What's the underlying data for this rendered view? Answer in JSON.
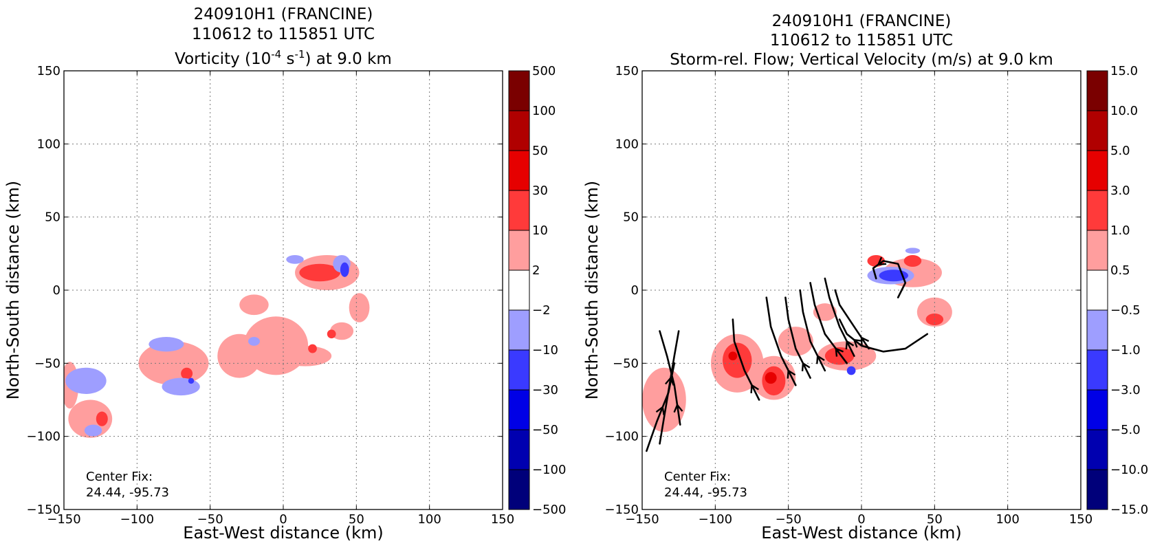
{
  "chart_data": [
    {
      "type": "heatmap",
      "title_lines": [
        "240910H1 (FRANCINE)",
        "110612 to 115851 UTC"
      ],
      "title_var": {
        "pre": "Vorticity (10",
        "exp1": "-4",
        "mid": " s",
        "exp2": "-1",
        "post": ") at 9.0 km"
      },
      "xlabel": "East-West distance (km)",
      "ylabel": "North-South distance (km)",
      "xlim": [
        -150,
        150
      ],
      "ylim": [
        -150,
        150
      ],
      "xticks": [
        "−150",
        "−100",
        "−50",
        "0",
        "50",
        "100",
        "150"
      ],
      "xtick_values": [
        -150,
        -100,
        -50,
        0,
        50,
        100,
        150
      ],
      "yticks": [
        "150",
        "100",
        "50",
        "0",
        "−50",
        "−100",
        "−150"
      ],
      "ytick_values": [
        150,
        100,
        50,
        0,
        -50,
        -100,
        -150
      ],
      "grid": true,
      "colorbar": {
        "labels": [
          "500",
          "100",
          "50",
          "30",
          "10",
          "2",
          "−2",
          "−10",
          "−30",
          "−50",
          "−100",
          "−500"
        ],
        "colors": [
          "#7a0000",
          "#b00000",
          "#e60000",
          "#ff3a3a",
          "#ff9e9e",
          "#ffffff",
          "#9e9eff",
          "#3a3aff",
          "#0000e6",
          "#0000b0",
          "#00007a"
        ]
      },
      "annotation": [
        "Center Fix:",
        "24.44, -95.73"
      ],
      "features": [
        {
          "level": "pos_2",
          "cx": -5,
          "cy": -38,
          "rx": 22,
          "ry": 20
        },
        {
          "level": "pos_2",
          "cx": -30,
          "cy": -45,
          "rx": 15,
          "ry": 15
        },
        {
          "level": "pos_2",
          "cx": 15,
          "cy": -45,
          "rx": 18,
          "ry": 7
        },
        {
          "level": "pos_2",
          "cx": -75,
          "cy": -50,
          "rx": 24,
          "ry": 15
        },
        {
          "level": "pos_2",
          "cx": -132,
          "cy": -88,
          "rx": 15,
          "ry": 13
        },
        {
          "level": "pos_2",
          "cx": -146,
          "cy": -65,
          "rx": 6,
          "ry": 16
        },
        {
          "level": "pos_2",
          "cx": 30,
          "cy": 12,
          "rx": 22,
          "ry": 12
        },
        {
          "level": "pos_2",
          "cx": 52,
          "cy": -12,
          "rx": 7,
          "ry": 10
        },
        {
          "level": "pos_2",
          "cx": 40,
          "cy": -28,
          "rx": 8,
          "ry": 6
        },
        {
          "level": "pos_2",
          "cx": -20,
          "cy": -10,
          "rx": 10,
          "ry": 7
        },
        {
          "level": "pos_10",
          "cx": 25,
          "cy": 12,
          "rx": 14,
          "ry": 6
        },
        {
          "level": "pos_10",
          "cx": -124,
          "cy": -88,
          "rx": 4,
          "ry": 5
        },
        {
          "level": "pos_10",
          "cx": -66,
          "cy": -57,
          "rx": 4,
          "ry": 4
        },
        {
          "level": "pos_10",
          "cx": 33,
          "cy": -30,
          "rx": 3,
          "ry": 3
        },
        {
          "level": "pos_10",
          "cx": 20,
          "cy": -40,
          "rx": 3,
          "ry": 3
        },
        {
          "level": "neg_2",
          "cx": -135,
          "cy": -62,
          "rx": 14,
          "ry": 9
        },
        {
          "level": "neg_2",
          "cx": -80,
          "cy": -37,
          "rx": 12,
          "ry": 5
        },
        {
          "level": "neg_2",
          "cx": -70,
          "cy": -66,
          "rx": 13,
          "ry": 6
        },
        {
          "level": "neg_2",
          "cx": -130,
          "cy": -96,
          "rx": 6,
          "ry": 4
        },
        {
          "level": "neg_2",
          "cx": 40,
          "cy": 18,
          "rx": 6,
          "ry": 6
        },
        {
          "level": "neg_2",
          "cx": 8,
          "cy": 21,
          "rx": 6,
          "ry": 3
        },
        {
          "level": "neg_2",
          "cx": -20,
          "cy": -35,
          "rx": 4,
          "ry": 3
        },
        {
          "level": "neg_10",
          "cx": 42,
          "cy": 14,
          "rx": 3,
          "ry": 5
        },
        {
          "level": "neg_10",
          "cx": -63,
          "cy": -62,
          "rx": 2,
          "ry": 2
        }
      ]
    },
    {
      "type": "heatmap",
      "title_lines": [
        "240910H1 (FRANCINE)",
        "110612 to 115851 UTC",
        "Storm-rel. Flow; Vertical Velocity (m/s) at 9.0 km"
      ],
      "xlabel": "East-West distance (km)",
      "ylabel": "North-South distance (km)",
      "xlim": [
        -150,
        150
      ],
      "ylim": [
        -150,
        150
      ],
      "xticks": [
        "−150",
        "−100",
        "−50",
        "0",
        "50",
        "100",
        "150"
      ],
      "xtick_values": [
        -150,
        -100,
        -50,
        0,
        50,
        100,
        150
      ],
      "yticks": [
        "150",
        "100",
        "50",
        "0",
        "−50",
        "−100",
        "−150"
      ],
      "ytick_values": [
        150,
        100,
        50,
        0,
        -50,
        -100,
        -150
      ],
      "grid": true,
      "colorbar": {
        "labels": [
          "15.0",
          "10.0",
          "5.0",
          "3.0",
          "1.0",
          "0.5",
          "−0.5",
          "−1.0",
          "−3.0",
          "−5.0",
          "−10.0",
          "−15.0"
        ],
        "colors": [
          "#7a0000",
          "#b00000",
          "#e60000",
          "#ff3a3a",
          "#ff9e9e",
          "#ffffff",
          "#9e9eff",
          "#3a3aff",
          "#0000e6",
          "#0000b0",
          "#00007a"
        ]
      },
      "annotation": [
        "Center Fix:",
        "24.44, -95.73"
      ],
      "features": [
        {
          "level": "pos_05",
          "cx": -85,
          "cy": -50,
          "rx": 18,
          "ry": 20
        },
        {
          "level": "pos_05",
          "cx": -60,
          "cy": -60,
          "rx": 15,
          "ry": 15
        },
        {
          "level": "pos_05",
          "cx": -45,
          "cy": -35,
          "rx": 12,
          "ry": 10
        },
        {
          "level": "pos_05",
          "cx": -10,
          "cy": -45,
          "rx": 20,
          "ry": 10
        },
        {
          "level": "pos_05",
          "cx": -135,
          "cy": -75,
          "rx": 15,
          "ry": 22
        },
        {
          "level": "pos_05",
          "cx": 35,
          "cy": 12,
          "rx": 20,
          "ry": 10
        },
        {
          "level": "pos_05",
          "cx": 50,
          "cy": -15,
          "rx": 12,
          "ry": 10
        },
        {
          "level": "pos_05",
          "cx": -25,
          "cy": -15,
          "rx": 8,
          "ry": 6
        },
        {
          "level": "pos_1",
          "cx": -85,
          "cy": -48,
          "rx": 10,
          "ry": 12
        },
        {
          "level": "pos_1",
          "cx": -60,
          "cy": -62,
          "rx": 8,
          "ry": 10
        },
        {
          "level": "pos_1",
          "cx": -15,
          "cy": -45,
          "rx": 10,
          "ry": 6
        },
        {
          "level": "pos_1",
          "cx": 35,
          "cy": 20,
          "rx": 6,
          "ry": 4
        },
        {
          "level": "pos_1",
          "cx": 50,
          "cy": -20,
          "rx": 6,
          "ry": 4
        },
        {
          "level": "pos_1",
          "cx": 10,
          "cy": 20,
          "rx": 6,
          "ry": 4
        },
        {
          "level": "pos_3",
          "cx": -62,
          "cy": -60,
          "rx": 4,
          "ry": 4
        },
        {
          "level": "pos_3",
          "cx": -88,
          "cy": -45,
          "rx": 3,
          "ry": 3
        },
        {
          "level": "neg_05",
          "cx": 20,
          "cy": 10,
          "rx": 16,
          "ry": 6
        },
        {
          "level": "neg_05",
          "cx": 35,
          "cy": 27,
          "rx": 5,
          "ry": 2
        },
        {
          "level": "neg_1",
          "cx": 22,
          "cy": 10,
          "rx": 10,
          "ry": 4
        },
        {
          "level": "neg_1",
          "cx": -7,
          "cy": -55,
          "rx": 3,
          "ry": 3
        }
      ],
      "streamlines": [
        {
          "points": [
            [
              -147,
              -110
            ],
            [
              -140,
              -90
            ],
            [
              -132,
              -70
            ],
            [
              -128,
              -50
            ]
          ],
          "arrow_at": 2
        },
        {
          "points": [
            [
              -138,
              -105
            ],
            [
              -133,
              -75
            ],
            [
              -128,
              -45
            ],
            [
              -125,
              -28
            ]
          ],
          "arrow_at": 2
        },
        {
          "points": [
            [
              -124,
              -92
            ],
            [
              -128,
              -65
            ],
            [
              -133,
              -45
            ],
            [
              -138,
              -28
            ]
          ],
          "arrow_at": 1
        },
        {
          "points": [
            [
              -70,
              -75
            ],
            [
              -80,
              -55
            ],
            [
              -87,
              -35
            ],
            [
              -88,
              -20
            ]
          ],
          "arrow_at": 1
        },
        {
          "points": [
            [
              -45,
              -65
            ],
            [
              -55,
              -45
            ],
            [
              -62,
              -25
            ],
            [
              -65,
              -5
            ]
          ],
          "arrow_at": 1
        },
        {
          "points": [
            [
              -35,
              -60
            ],
            [
              -45,
              -40
            ],
            [
              -50,
              -20
            ],
            [
              -52,
              -5
            ]
          ],
          "arrow_at": 1
        },
        {
          "points": [
            [
              -25,
              -55
            ],
            [
              -35,
              -35
            ],
            [
              -40,
              -15
            ],
            [
              -42,
              0
            ]
          ],
          "arrow_at": 1
        },
        {
          "points": [
            [
              -10,
              -50
            ],
            [
              -25,
              -30
            ],
            [
              -32,
              -10
            ],
            [
              -35,
              5
            ]
          ],
          "arrow_at": 1
        },
        {
          "points": [
            [
              -5,
              -45
            ],
            [
              -15,
              -25
            ],
            [
              -22,
              -5
            ],
            [
              -25,
              8
            ]
          ],
          "arrow_at": 1
        },
        {
          "points": [
            [
              5,
              -40
            ],
            [
              -5,
              -25
            ],
            [
              -15,
              -10
            ],
            [
              -18,
              0
            ]
          ],
          "arrow_at": 1
        },
        {
          "points": [
            [
              45,
              -30
            ],
            [
              30,
              -40
            ],
            [
              15,
              -42
            ],
            [
              0,
              -38
            ],
            [
              -10,
              -30
            ],
            [
              -15,
              -20
            ]
          ],
          "arrow_at": 4
        },
        {
          "points": [
            [
              25,
              -5
            ],
            [
              30,
              5
            ],
            [
              25,
              18
            ],
            [
              15,
              20
            ],
            [
              8,
              15
            ],
            [
              10,
              8
            ]
          ],
          "arrow_at": 4
        }
      ]
    }
  ]
}
